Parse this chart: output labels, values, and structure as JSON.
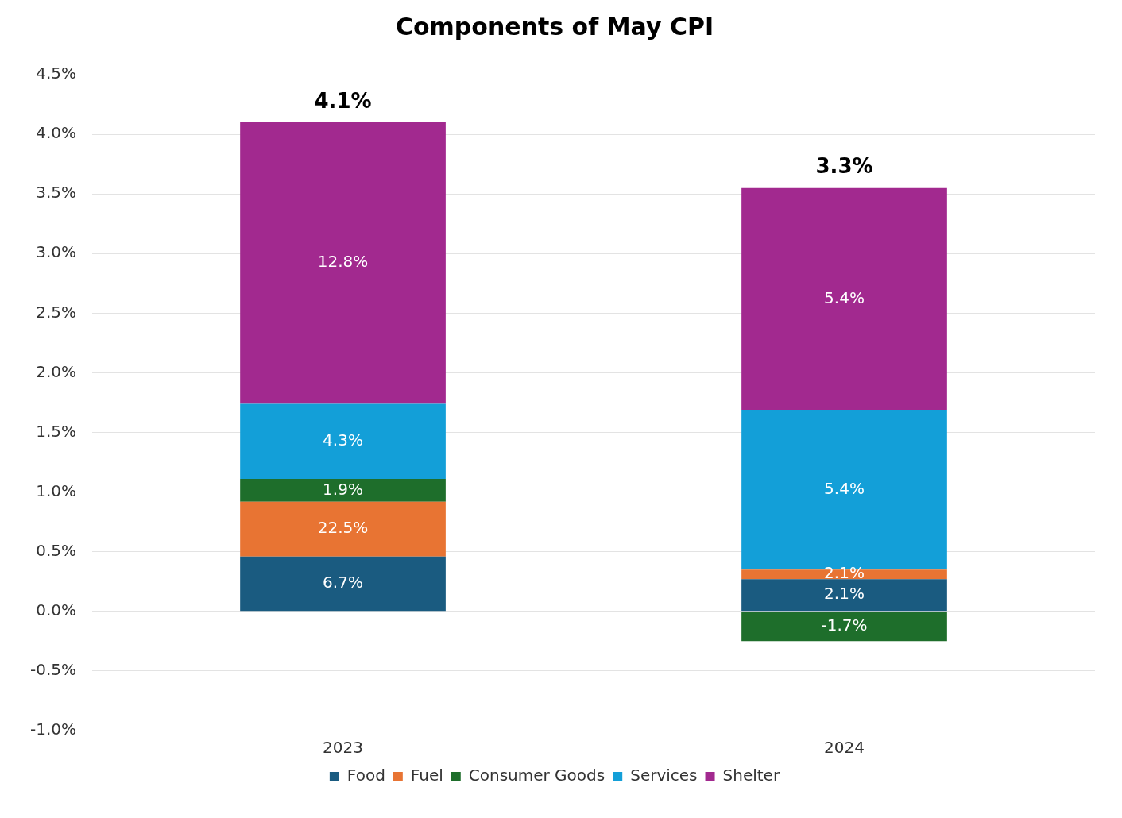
{
  "chart_data": {
    "type": "bar",
    "title": "Components of May CPI",
    "categories": [
      "2023",
      "2024"
    ],
    "stacked": true,
    "grid": "y",
    "legend": "bottom",
    "ylim": [
      -1.0,
      4.5
    ],
    "yticks": [
      {
        "value": -1.0,
        "label": "-1.0%"
      },
      {
        "value": -0.5,
        "label": "-0.5%"
      },
      {
        "value": 0,
        "label": "0.0%"
      },
      {
        "value": 0.5,
        "label": "0.5%"
      },
      {
        "value": 1.0,
        "label": "1.0%"
      },
      {
        "value": 1.5,
        "label": "1.5%"
      },
      {
        "value": 2.0,
        "label": "2.0%"
      },
      {
        "value": 2.5,
        "label": "2.5%"
      },
      {
        "value": 3.0,
        "label": "3.0%"
      },
      {
        "value": 3.5,
        "label": "3.5%"
      },
      {
        "value": 4.0,
        "label": "4.0%"
      },
      {
        "value": 4.5,
        "label": "4.5%"
      }
    ],
    "series": [
      {
        "name": "Food",
        "color": "#1a5b80",
        "values": [
          0.46,
          0.27
        ]
      },
      {
        "name": "Fuel",
        "color": "#e87433",
        "values": [
          0.46,
          0.08
        ]
      },
      {
        "name": "Consumer Goods",
        "color": "#1e6e2b",
        "values": [
          0.19,
          -0.25
        ]
      },
      {
        "name": "Services",
        "color": "#139fd8",
        "values": [
          0.63,
          1.34
        ]
      },
      {
        "name": "Shelter",
        "color": "#a2298f",
        "values": [
          2.36,
          1.86
        ]
      }
    ],
    "annotations": [
      "6.7%",
      "22.5%",
      "1.9%",
      "4.3%",
      "12.8%",
      "2.1%",
      "2.1%",
      "-1.7%",
      "5.4%",
      "5.4%"
    ],
    "totals": [
      "4.1%",
      "3.3%"
    ]
  }
}
